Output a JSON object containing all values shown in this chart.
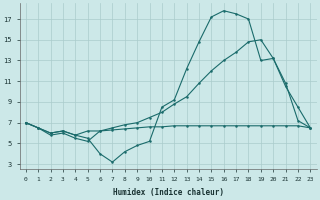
{
  "xlabel": "Humidex (Indice chaleur)",
  "background_color": "#cce8e8",
  "grid_color": "#aacccc",
  "line_color": "#1a6b6b",
  "xlim": [
    -0.5,
    23.5
  ],
  "ylim": [
    2.5,
    18.5
  ],
  "xticks": [
    0,
    1,
    2,
    3,
    4,
    5,
    6,
    7,
    8,
    9,
    10,
    11,
    12,
    13,
    14,
    15,
    16,
    17,
    18,
    19,
    20,
    21,
    22,
    23
  ],
  "yticks": [
    3,
    5,
    7,
    9,
    11,
    13,
    15,
    17
  ],
  "curve1_x": [
    0,
    1,
    2,
    3,
    4,
    5,
    6,
    7,
    8,
    9,
    10,
    11,
    12,
    13,
    14,
    15,
    16,
    17,
    18,
    19,
    20,
    21,
    22,
    23
  ],
  "curve1_y": [
    7.0,
    6.5,
    6.0,
    6.2,
    5.8,
    5.5,
    4.0,
    3.2,
    4.2,
    4.8,
    5.2,
    8.5,
    9.2,
    12.2,
    14.8,
    17.2,
    17.8,
    17.5,
    17.0,
    13.0,
    13.2,
    10.5,
    8.5,
    6.5
  ],
  "curve2_x": [
    0,
    1,
    2,
    3,
    4,
    5,
    6,
    7,
    8,
    9,
    10,
    11,
    12,
    13,
    14,
    15,
    16,
    17,
    18,
    19,
    20,
    21,
    22,
    23
  ],
  "curve2_y": [
    7.0,
    6.5,
    5.8,
    6.0,
    5.5,
    5.2,
    6.2,
    6.5,
    6.8,
    7.0,
    7.5,
    8.0,
    8.8,
    9.5,
    10.8,
    12.0,
    13.0,
    13.8,
    14.8,
    15.0,
    13.2,
    10.8,
    7.2,
    6.5
  ],
  "curve3_x": [
    0,
    1,
    2,
    3,
    4,
    5,
    6,
    7,
    8,
    9,
    10,
    11,
    12,
    13,
    14,
    15,
    16,
    17,
    18,
    19,
    20,
    21,
    22,
    23
  ],
  "curve3_y": [
    7.0,
    6.5,
    6.0,
    6.2,
    5.8,
    6.2,
    6.2,
    6.3,
    6.4,
    6.5,
    6.6,
    6.6,
    6.7,
    6.7,
    6.7,
    6.7,
    6.7,
    6.7,
    6.7,
    6.7,
    6.7,
    6.7,
    6.7,
    6.5
  ],
  "xlabel_fontsize": 5.5,
  "tick_fontsize": 5,
  "marker_size": 1.8,
  "line_width": 0.8
}
